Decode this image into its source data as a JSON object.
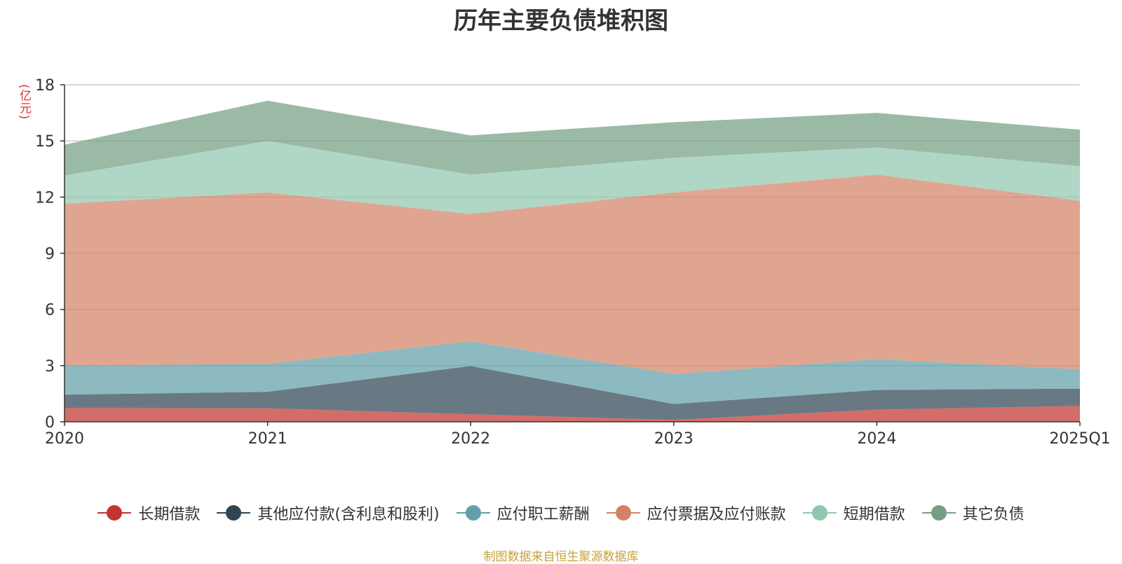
{
  "chart_data": {
    "type": "area",
    "stacked": true,
    "title": "历年主要负债堆积图",
    "unit_label": "(亿元)",
    "x": [
      "2020",
      "2021",
      "2022",
      "2023",
      "2024",
      "2025Q1"
    ],
    "ylim": [
      0,
      18
    ],
    "yticks": [
      "0",
      "3",
      "6",
      "9",
      "12",
      "15",
      "18"
    ],
    "grid": true,
    "legend_position": "bottom",
    "series": [
      {
        "name": "长期借款",
        "color": "#c23531",
        "values": [
          0.75,
          0.72,
          0.4,
          0.1,
          0.65,
          0.85
        ]
      },
      {
        "name": "其他应付款(含利息和股利)",
        "color": "#2f4554",
        "values": [
          0.7,
          0.88,
          2.58,
          0.85,
          1.05,
          0.92
        ]
      },
      {
        "name": "应付职工薪酬",
        "color": "#61a0a8",
        "values": [
          1.55,
          1.5,
          1.32,
          1.6,
          1.65,
          1.03
        ]
      },
      {
        "name": "应付票据及应付账款",
        "color": "#d48265",
        "values": [
          8.65,
          9.15,
          6.8,
          9.7,
          9.85,
          9.0
        ]
      },
      {
        "name": "短期借款",
        "color": "#91c7ae",
        "values": [
          1.5,
          2.75,
          2.1,
          1.85,
          1.45,
          1.85
        ]
      },
      {
        "name": "其它负债",
        "color": "#749f83",
        "values": [
          1.65,
          2.15,
          2.1,
          1.9,
          1.85,
          1.95
        ]
      }
    ],
    "source_note": "制图数据来自恒生聚源数据库"
  }
}
